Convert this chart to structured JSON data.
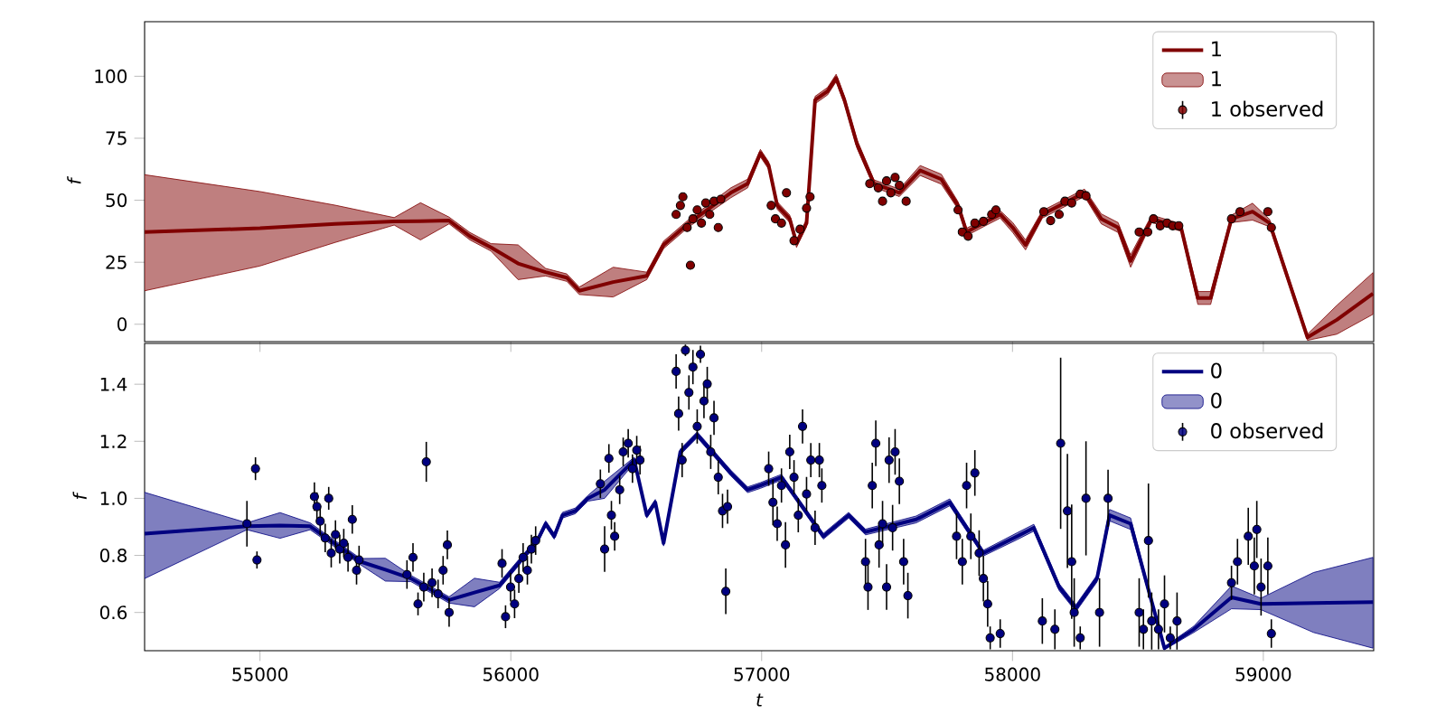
{
  "chart_data": [
    {
      "type": "line",
      "ylabel": "f",
      "xlim": [
        54540,
        59440
      ],
      "ylim": [
        -7,
        122
      ],
      "xticks": [
        55000,
        56000,
        57000,
        58000,
        59000
      ],
      "yticks": [
        0,
        25,
        50,
        75,
        100
      ],
      "tick_labels": "y",
      "legend": "top right",
      "series": [
        {
          "name": "1",
          "color": "#800000",
          "line_style": "solid",
          "x": [
            54540,
            55000,
            55300,
            55535,
            55640,
            55754,
            55837,
            55921,
            56029,
            56139,
            56223,
            56273,
            56408,
            56542,
            56609,
            56710,
            56877,
            56944,
            56995,
            57028,
            57062,
            57112,
            57139,
            57179,
            57213,
            57263,
            57297,
            57330,
            57380,
            57448,
            57549,
            57632,
            57716,
            57783,
            57817,
            57884,
            57951,
            58001,
            58052,
            58119,
            58287,
            58354,
            58421,
            58471,
            58555,
            58672,
            58739,
            58790,
            58873,
            58957,
            59025,
            59176,
            59293,
            59437
          ],
          "values": [
            37.2,
            38.7,
            40.5,
            41.5,
            41.6,
            41.8,
            35.5,
            31,
            24.5,
            21,
            18.8,
            13.5,
            17,
            19.5,
            32,
            40.8,
            53,
            56.7,
            69,
            64,
            47.9,
            42.5,
            32.6,
            40.8,
            90.4,
            94,
            99.3,
            90.4,
            72.7,
            56.7,
            53,
            62,
            58.5,
            47.9,
            37.2,
            40.8,
            44.3,
            39,
            32,
            44.3,
            53,
            42.5,
            39,
            25.5,
            42.5,
            39,
            10.6,
            10.6,
            42.5,
            45.4,
            40.8,
            -5.3,
            1.8,
            12.4
          ],
          "lower": [
            13.5,
            23.5,
            33,
            40,
            34,
            40.5,
            34,
            29.5,
            18,
            19.5,
            17.3,
            12,
            11,
            18,
            30.5,
            39.3,
            51,
            55,
            67.5,
            62.5,
            46.4,
            41,
            31,
            39.3,
            88.9,
            92.5,
            97.8,
            88.9,
            71,
            55.2,
            51.5,
            60,
            56.5,
            46.4,
            35.7,
            39.3,
            42.8,
            37,
            30,
            42.8,
            51.5,
            40.5,
            37,
            23,
            41,
            37.5,
            8,
            8,
            41,
            42,
            39.3,
            -6.5,
            -4,
            4
          ],
          "upper": [
            60.3,
            53.5,
            48,
            43,
            49,
            43.2,
            37,
            32.5,
            32,
            22.5,
            20.3,
            15,
            23,
            21,
            33.5,
            42.3,
            55,
            58.5,
            70.5,
            65.5,
            49.4,
            44,
            34.2,
            42.3,
            91.9,
            95.5,
            100.8,
            91.9,
            74.4,
            58.2,
            54.5,
            64,
            60.5,
            49.4,
            38.7,
            42.3,
            45.8,
            41,
            34,
            45.8,
            54.5,
            44.5,
            41,
            28,
            44,
            40.5,
            13.2,
            13.2,
            44,
            48.8,
            42.3,
            -4,
            7.6,
            20.8
          ]
        },
        {
          "type": "scatter",
          "name": "1 observed",
          "color": "#800000",
          "marker": "circle",
          "x": [
            56659,
            56676,
            56686,
            56703,
            56716,
            56726,
            56743,
            56760,
            56777,
            56793,
            56810,
            56827,
            56837,
            57038,
            57055,
            57079,
            57099,
            57129,
            57153,
            57179,
            57193,
            57431,
            57465,
            57482,
            57498,
            57515,
            57532,
            57549,
            57576,
            57783,
            57800,
            57823,
            57850,
            57884,
            57917,
            57934,
            58125,
            58152,
            58186,
            58209,
            58236,
            58270,
            58293,
            58505,
            58539,
            58562,
            58589,
            58616,
            58639,
            58663,
            58873,
            58907,
            59018,
            59032
          ],
          "values": [
            44.3,
            47.9,
            51.4,
            39,
            23.8,
            42.5,
            46.1,
            40.8,
            48.9,
            44.3,
            49.6,
            39,
            50.4,
            47.9,
            42.5,
            40.8,
            53,
            33.7,
            38.3,
            46.8,
            51.4,
            56.7,
            55,
            49.6,
            57.8,
            53,
            59.2,
            56,
            49.6,
            46.1,
            37.2,
            35.5,
            40.8,
            41.5,
            44.3,
            46.1,
            45.4,
            41.8,
            44.3,
            49.6,
            48.9,
            52.5,
            51.8,
            37.2,
            37.2,
            42.5,
            39.7,
            40.8,
            39.7,
            39.7,
            42.5,
            45.4,
            45.4,
            39
          ]
        }
      ]
    },
    {
      "type": "line",
      "xlabel": "t",
      "ylabel": "f",
      "xlim": [
        54540,
        59440
      ],
      "ylim": [
        0.466,
        1.543
      ],
      "xticks": [
        55000,
        56000,
        57000,
        58000,
        59000
      ],
      "yticks": [
        {
          "value": 0.6,
          "label": "0.6"
        },
        {
          "value": 0.8,
          "label": "0.8"
        },
        {
          "value": 1.0,
          "label": "1.0"
        },
        {
          "value": 1.2,
          "label": "1.2"
        },
        {
          "value": 1.4,
          "label": "1.4"
        }
      ],
      "legend": "top right",
      "series": [
        {
          "name": "0",
          "color": "#000080",
          "line_style": "solid",
          "x": [
            54540,
            54948,
            55080,
            55200,
            55401,
            55500,
            55602,
            55754,
            55855,
            55955,
            56106,
            56139,
            56173,
            56206,
            56257,
            56307,
            56374,
            56492,
            56542,
            56576,
            56609,
            56676,
            56743,
            56877,
            56944,
            56995,
            57079,
            57246,
            57347,
            57414,
            57616,
            57750,
            57884,
            58018,
            58085,
            58186,
            58253,
            58337,
            58387,
            58471,
            58539,
            58606,
            58723,
            58873,
            58990,
            59200,
            59437
          ],
          "values": [
            0.876,
            0.902,
            0.905,
            0.902,
            0.778,
            0.75,
            0.719,
            0.644,
            0.67,
            0.695,
            0.852,
            0.911,
            0.867,
            0.941,
            0.956,
            1.0,
            1.03,
            1.134,
            0.941,
            0.986,
            0.843,
            1.163,
            1.223,
            1.089,
            1.03,
            1.045,
            1.074,
            0.867,
            0.941,
            0.882,
            0.926,
            0.986,
            0.808,
            0.867,
            0.897,
            0.689,
            0.615,
            0.719,
            0.941,
            0.911,
            0.689,
            0.475,
            0.541,
            0.653,
            0.63,
            0.633,
            0.636
          ],
          "lower": [
            0.719,
            0.89,
            0.86,
            0.89,
            0.767,
            0.71,
            0.708,
            0.633,
            0.62,
            0.684,
            0.842,
            0.901,
            0.857,
            0.931,
            0.946,
            0.99,
            1.0,
            1.124,
            0.931,
            0.976,
            0.833,
            1.153,
            1.213,
            1.079,
            1.02,
            1.035,
            1.064,
            0.857,
            0.931,
            0.872,
            0.914,
            0.974,
            0.798,
            0.855,
            0.885,
            0.677,
            0.603,
            0.707,
            0.921,
            0.891,
            0.677,
            0.47,
            0.53,
            0.613,
            0.61,
            0.53,
            0.475
          ],
          "upper": [
            1.021,
            0.914,
            0.95,
            0.914,
            0.789,
            0.79,
            0.73,
            0.655,
            0.72,
            0.706,
            0.862,
            0.921,
            0.877,
            0.951,
            0.966,
            1.01,
            1.06,
            1.144,
            0.951,
            0.996,
            0.853,
            1.173,
            1.233,
            1.099,
            1.04,
            1.055,
            1.084,
            0.877,
            0.951,
            0.892,
            0.938,
            0.998,
            0.818,
            0.879,
            0.909,
            0.701,
            0.627,
            0.731,
            0.961,
            0.931,
            0.701,
            0.48,
            0.552,
            0.693,
            0.65,
            0.74,
            0.793
          ]
        },
        {
          "type": "scatter",
          "name": "0 observed",
          "color": "#000080",
          "marker": "circle",
          "x": [
            54948,
            54982,
            54988,
            55217,
            55227,
            55240,
            55260,
            55274,
            55284,
            55301,
            55318,
            55334,
            55351,
            55368,
            55385,
            55395,
            55586,
            55610,
            55630,
            55653,
            55663,
            55686,
            55710,
            55730,
            55747,
            55754,
            55965,
            55979,
            55999,
            56015,
            56032,
            56049,
            56066,
            56082,
            56099,
            56357,
            56374,
            56391,
            56401,
            56414,
            56434,
            56448,
            56468,
            56485,
            56502,
            56515,
            56659,
            56669,
            56683,
            56696,
            56710,
            56726,
            56743,
            56756,
            56770,
            56783,
            56797,
            56810,
            56827,
            56844,
            56857,
            56864,
            57028,
            57045,
            57062,
            57079,
            57095,
            57112,
            57129,
            57146,
            57163,
            57179,
            57196,
            57213,
            57230,
            57240,
            57414,
            57424,
            57441,
            57455,
            57468,
            57482,
            57498,
            57508,
            57522,
            57532,
            57549,
            57566,
            57583,
            57777,
            57800,
            57817,
            57834,
            57850,
            57867,
            57884,
            57901,
            57911,
            57951,
            58119,
            58169,
            58192,
            58219,
            58236,
            58246,
            58270,
            58293,
            58347,
            58381,
            58505,
            58522,
            58542,
            58555,
            58582,
            58606,
            58629,
            58656,
            58873,
            58897,
            58940,
            58964,
            58974,
            58991,
            59018,
            59032
          ],
          "values": [
            0.911,
            1.104,
            0.784,
            1.006,
            0.971,
            0.92,
            0.861,
            1.0,
            0.808,
            0.873,
            0.822,
            0.843,
            0.793,
            0.926,
            0.748,
            0.784,
            0.733,
            0.793,
            0.63,
            0.689,
            1.128,
            0.704,
            0.665,
            0.748,
            0.837,
            0.6,
            0.772,
            0.585,
            0.689,
            0.63,
            0.719,
            0.793,
            0.748,
            0.822,
            0.852,
            1.051,
            0.822,
            1.14,
            0.941,
            0.867,
            1.03,
            1.163,
            1.193,
            1.104,
            1.169,
            1.134,
            1.445,
            1.297,
            1.134,
            1.519,
            1.371,
            1.46,
            1.252,
            1.505,
            1.341,
            1.401,
            1.163,
            1.282,
            1.074,
            0.956,
            0.674,
            0.971,
            1.104,
            0.986,
            0.911,
            1.045,
            0.837,
            1.163,
            1.074,
            0.941,
            1.252,
            1.015,
            1.134,
            0.897,
            1.134,
            1.045,
            0.778,
            0.689,
            1.045,
            1.193,
            0.837,
            0.911,
            0.689,
            1.134,
            0.897,
            1.163,
            1.06,
            0.778,
            0.659,
            0.867,
            0.778,
            1.045,
            0.867,
            1.089,
            0.808,
            0.719,
            0.63,
            0.511,
            0.526,
            0.57,
            0.541,
            1.193,
            0.956,
            0.778,
            0.6,
            0.511,
            1.0,
            0.6,
            1.0,
            0.6,
            0.541,
            0.852,
            0.57,
            0.541,
            0.63,
            0.511,
            0.57,
            0.704,
            0.778,
            0.867,
            0.763,
            0.891,
            0.689,
            0.763,
            0.526
          ],
          "errors": [
            0.08,
            0.04,
            0.03,
            0.05,
            0.05,
            0.05,
            0.05,
            0.04,
            0.05,
            0.05,
            0.05,
            0.05,
            0.05,
            0.05,
            0.05,
            0.05,
            0.05,
            0.05,
            0.04,
            0.05,
            0.07,
            0.05,
            0.05,
            0.05,
            0.05,
            0.05,
            0.05,
            0.04,
            0.05,
            0.05,
            0.05,
            0.05,
            0.05,
            0.05,
            0.05,
            0.05,
            0.08,
            0.05,
            0.05,
            0.05,
            0.05,
            0.05,
            0.05,
            0.05,
            0.05,
            0.05,
            0.06,
            0.06,
            0.06,
            0.02,
            0.06,
            0.06,
            0.06,
            0.03,
            0.06,
            0.06,
            0.06,
            0.06,
            0.06,
            0.06,
            0.08,
            0.06,
            0.06,
            0.08,
            0.06,
            0.06,
            0.08,
            0.06,
            0.06,
            0.06,
            0.06,
            0.06,
            0.06,
            0.06,
            0.06,
            0.06,
            0.08,
            0.08,
            0.08,
            0.08,
            0.08,
            0.08,
            0.08,
            0.08,
            0.08,
            0.08,
            0.08,
            0.08,
            0.08,
            0.08,
            0.08,
            0.08,
            0.08,
            0.08,
            0.08,
            0.08,
            0.08,
            0.04,
            0.05,
            0.08,
            0.07,
            0.3,
            0.2,
            0.2,
            0.12,
            0.04,
            0.2,
            0.12,
            0.1,
            0.12,
            0.07,
            0.2,
            0.1,
            0.07,
            0.1,
            0.04,
            0.1,
            0.06,
            0.08,
            0.1,
            0.1,
            0.1,
            0.1,
            0.1,
            0.05
          ]
        }
      ]
    }
  ]
}
